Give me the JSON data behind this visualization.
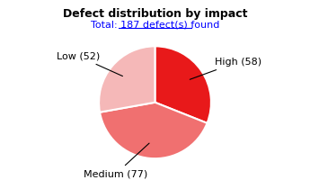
{
  "title": "Defect distribution by impact",
  "subtitle": "Total: 187 defect(s) found",
  "labels": [
    "High",
    "Medium",
    "Low"
  ],
  "values": [
    58,
    77,
    52
  ],
  "colors": [
    "#e8191a",
    "#f07070",
    "#f5b8b8"
  ],
  "startangle": 90,
  "background_color": "#ffffff"
}
